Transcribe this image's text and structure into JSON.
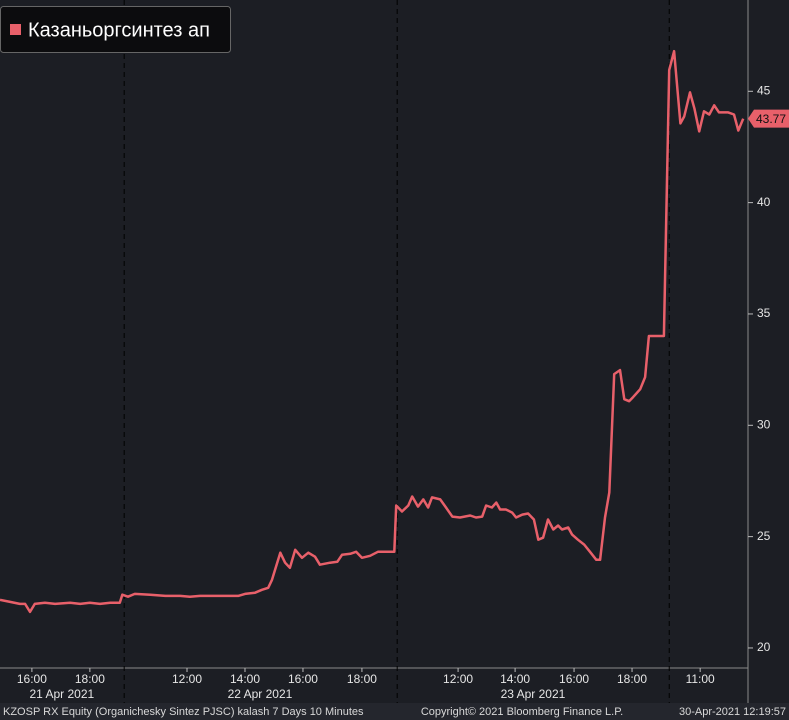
{
  "chart_data": {
    "type": "line",
    "series": [
      {
        "name": "Казаньоргсинтез ап",
        "color": "#e8606a",
        "values": [
          22.16,
          22.07,
          21.98,
          21.98,
          21.62,
          21.98,
          22.03,
          21.98,
          22.03,
          21.98,
          22.03,
          21.98,
          22.03,
          22.03,
          22.39,
          22.3,
          22.43,
          22.39,
          22.34,
          22.34,
          22.3,
          22.34,
          22.34,
          22.34,
          22.43,
          22.48,
          22.61,
          22.7,
          23.06,
          24.28,
          23.83,
          23.6,
          24.41,
          24.05,
          24.28,
          24.1,
          23.74,
          23.83,
          23.87,
          24.19,
          24.23,
          24.32,
          24.05,
          24.14,
          24.32,
          24.32,
          24.32,
          26.4,
          26.13,
          26.4,
          26.8,
          26.35,
          26.67,
          26.31,
          26.76,
          26.67,
          26.31,
          25.9,
          25.86,
          25.95,
          25.86,
          25.9,
          26.4,
          26.31,
          26.53,
          26.22,
          26.22,
          26.08,
          25.86,
          25.99,
          26.04,
          25.77,
          24.86,
          24.95,
          25.77,
          25.32,
          25.5,
          25.32,
          25.41,
          25.09,
          24.86,
          24.64,
          24.32,
          23.96,
          23.96,
          25.86,
          26.98,
          32.3,
          32.48,
          31.17,
          31.08,
          31.26,
          31.62,
          32.16,
          34.01,
          34.01,
          45.95,
          46.8,
          43.56,
          43.87,
          44.95,
          44.23,
          43.2,
          44.1,
          43.96,
          44.37,
          44.05,
          44.05,
          43.96,
          43.24,
          43.77
        ]
      }
    ],
    "x": [
      0,
      2.1,
      4.1,
      5.2,
      6.2,
      7.2,
      9.3,
      11.4,
      14.5,
      16.6,
      18.6,
      20.7,
      22.8,
      24.8,
      25.3,
      26.5,
      27.9,
      31.1,
      34.2,
      37.3,
      39.3,
      41.4,
      45.5,
      49.3,
      50.7,
      52.8,
      54.2,
      55.5,
      56.3,
      58,
      59,
      60,
      61.1,
      62.5,
      63.8,
      65.2,
      66.2,
      68.3,
      69.8,
      70.8,
      72.5,
      73.7,
      74.9,
      76.6,
      78.2,
      80.7,
      81.6,
      82,
      83.2,
      84.5,
      85.3,
      86.5,
      87.6,
      88.6,
      89.4,
      91.1,
      92.3,
      93.6,
      95.2,
      97.3,
      98.5,
      99.8,
      100.6,
      101.8,
      102.7,
      103.5,
      104.7,
      106,
      106.8,
      108.1,
      109.3,
      110.5,
      111.4,
      112.4,
      113.4,
      114.5,
      115.5,
      116.3,
      117.6,
      118.4,
      119.6,
      120.9,
      122.1,
      123.4,
      124.2,
      125.2,
      126.1,
      127.1,
      128.3,
      129.2,
      130.2,
      131,
      132.5,
      133.5,
      134.3,
      137.4,
      138.5,
      139.5,
      140.8,
      141.6,
      142.8,
      143.7,
      144.7,
      145.7,
      146.8,
      147.8,
      148.8,
      150.7,
      151.9,
      152.8,
      153.8
    ],
    "xlim": [
      0,
      154.8
    ],
    "xticks": [
      {
        "value": 6.6,
        "label": "16:00"
      },
      {
        "value": 18.6,
        "label": "18:00"
      },
      {
        "value": 38.7,
        "label": "12:00"
      },
      {
        "value": 50.7,
        "label": "14:00"
      },
      {
        "value": 62.7,
        "label": "16:00"
      },
      {
        "value": 74.9,
        "label": "18:00"
      },
      {
        "value": 94.8,
        "label": "12:00"
      },
      {
        "value": 106.6,
        "label": "14:00"
      },
      {
        "value": 118.8,
        "label": "16:00"
      },
      {
        "value": 130.8,
        "label": "18:00"
      },
      {
        "value": 144.9,
        "label": "11:00"
      }
    ],
    "date_labels": [
      {
        "value": 12.8,
        "label": "21 Apr 2021"
      },
      {
        "value": 53.8,
        "label": "22 Apr 2021"
      },
      {
        "value": 110.3,
        "label": "23 Apr 2021"
      }
    ],
    "day_breaks": [
      25.7,
      82.2,
      138.5
    ],
    "ylim": [
      19.1,
      49.1
    ],
    "yticks": [
      20,
      25,
      30,
      35,
      40,
      45
    ],
    "legend": "upper left"
  },
  "footer": {
    "left": "KZOSP RX Equity (Organichesky Sintez PJSC) kalash 7 Days 10 Minutes",
    "center": "Copyright© 2021 Bloomberg Finance L.P.",
    "right": "30-Apr-2021 12:19:57"
  }
}
